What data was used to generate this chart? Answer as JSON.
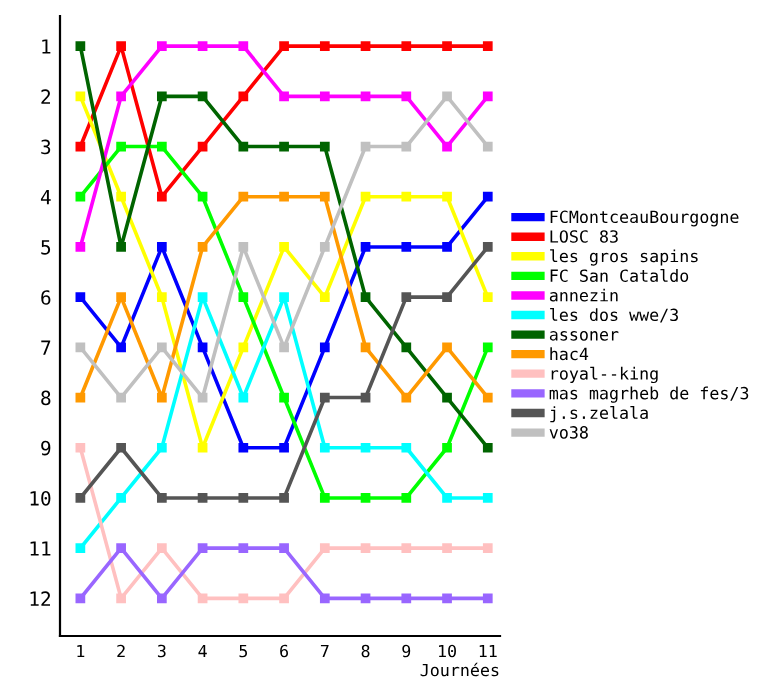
{
  "chart_data": {
    "type": "line",
    "xlabel": "Journées",
    "x": [
      1,
      2,
      3,
      4,
      5,
      6,
      7,
      8,
      9,
      10,
      11
    ],
    "xlim": [
      0.5,
      11.3
    ],
    "xticks": [
      1,
      2,
      3,
      4,
      5,
      6,
      7,
      8,
      9,
      10,
      11
    ],
    "ylim": [
      12.75,
      0.4
    ],
    "yticks": [
      1,
      2,
      3,
      4,
      5,
      6,
      7,
      8,
      9,
      10,
      11,
      12
    ],
    "marker": "square",
    "grid": false,
    "legend": "right",
    "series": [
      {
        "name": "FCMontceauBourgogne",
        "color": "#0000ff",
        "values": [
          6,
          7,
          5,
          7,
          9,
          9,
          7,
          5,
          5,
          5,
          4
        ]
      },
      {
        "name": "LOSC 83",
        "color": "#ff0000",
        "values": [
          3,
          1,
          4,
          3,
          2,
          1,
          1,
          1,
          1,
          1,
          1
        ]
      },
      {
        "name": "les gros sapins",
        "color": "#ffff00",
        "values": [
          2,
          4,
          6,
          9,
          7,
          5,
          6,
          4,
          4,
          4,
          6
        ]
      },
      {
        "name": "FC San Cataldo",
        "color": "#00ff00",
        "values": [
          4,
          3,
          3,
          4,
          6,
          8,
          10,
          10,
          10,
          9,
          7
        ]
      },
      {
        "name": "annezin",
        "color": "#ff00ff",
        "values": [
          5,
          2,
          1,
          1,
          1,
          2,
          2,
          2,
          2,
          3,
          2
        ]
      },
      {
        "name": "les dos wwe/3",
        "color": "#00ffff",
        "values": [
          11,
          10,
          9,
          6,
          8,
          6,
          9,
          9,
          9,
          10,
          10
        ]
      },
      {
        "name": "assoner",
        "color": "#006400",
        "values": [
          1,
          5,
          2,
          2,
          3,
          3,
          3,
          6,
          7,
          8,
          9
        ]
      },
      {
        "name": "hac4",
        "color": "#ff9900",
        "values": [
          8,
          6,
          8,
          5,
          4,
          4,
          4,
          7,
          8,
          7,
          8
        ]
      },
      {
        "name": "royal--king",
        "color": "#ffc0c0",
        "values": [
          9,
          12,
          11,
          12,
          12,
          12,
          11,
          11,
          11,
          11,
          11
        ]
      },
      {
        "name": "mas magrheb de fes/3",
        "color": "#9966ff",
        "values": [
          12,
          11,
          12,
          11,
          11,
          11,
          12,
          12,
          12,
          12,
          12
        ]
      },
      {
        "name": "j.s.zelala",
        "color": "#555555",
        "values": [
          10,
          9,
          10,
          10,
          10,
          10,
          8,
          8,
          6,
          6,
          5
        ]
      },
      {
        "name": "vo38",
        "color": "#c0c0c0",
        "values": [
          7,
          8,
          7,
          8,
          5,
          7,
          5,
          3,
          3,
          2,
          3
        ]
      }
    ]
  }
}
